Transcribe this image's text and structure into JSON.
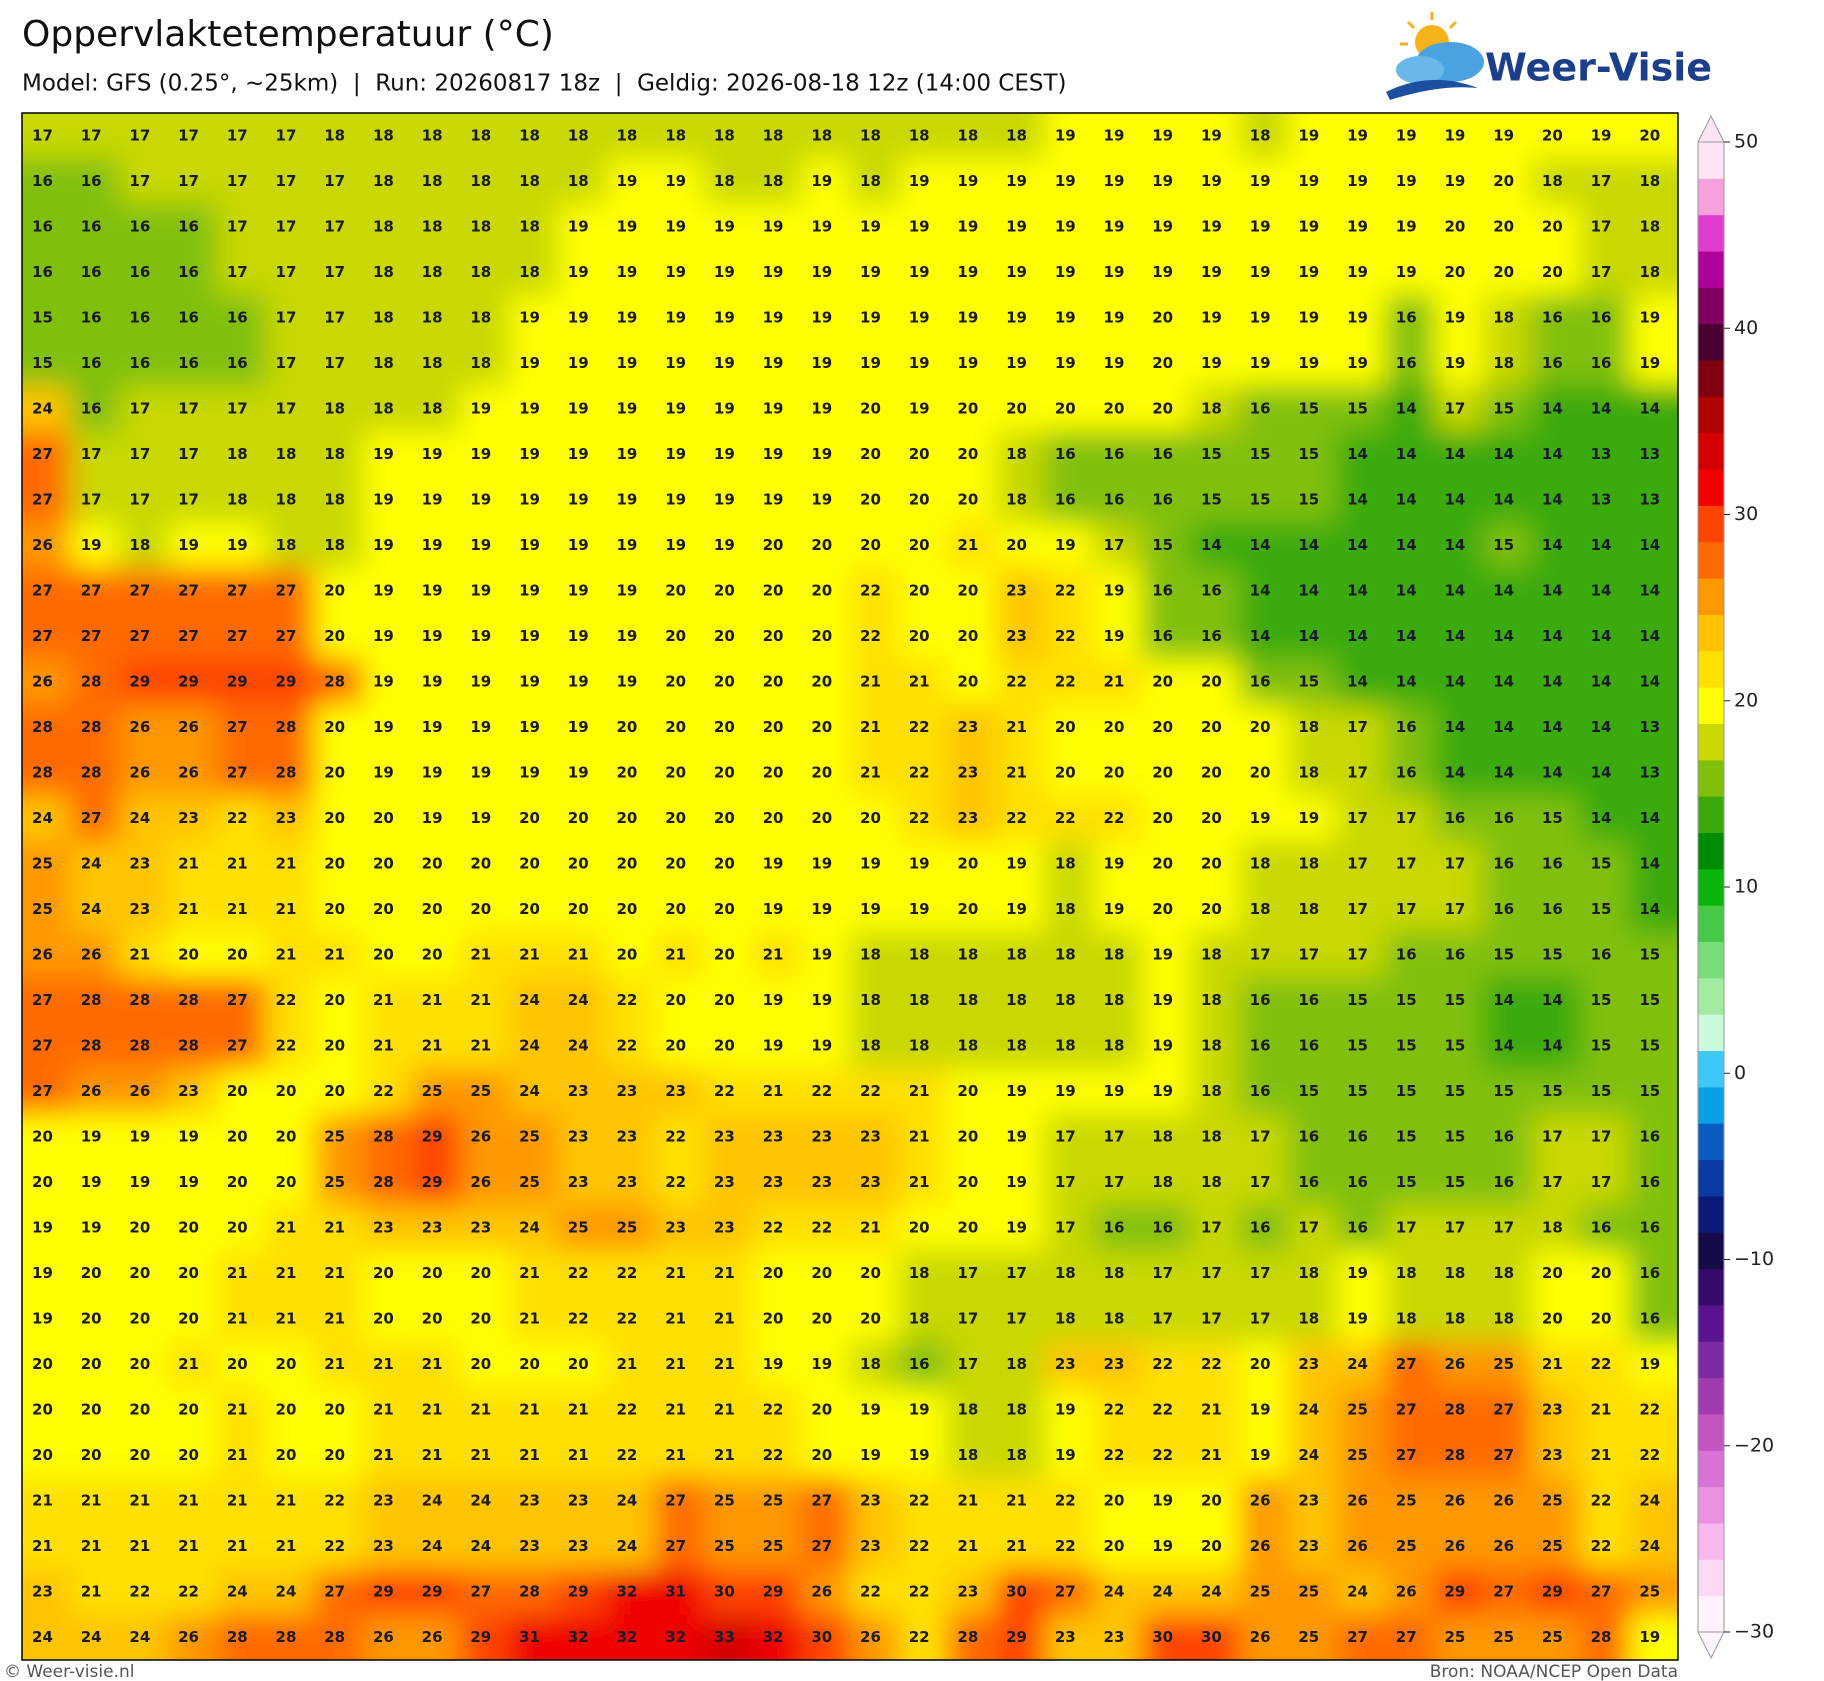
{
  "header": {
    "title": "Oppervlaktetemperatuur (°C)",
    "subtitle": "Model: GFS (0.25°, ~25km)  |  Run: 20260817 18z  |  Geldig: 2026-08-18 12z (14:00 CEST)",
    "logo_text": "Weer-Visie"
  },
  "map": {
    "rows": [
      [
        17,
        17,
        17,
        17,
        17,
        17,
        18,
        18,
        18,
        18,
        18,
        18,
        18,
        18,
        18,
        18,
        18,
        18,
        18,
        18,
        18,
        19,
        19,
        19,
        19,
        18,
        19,
        19,
        19,
        19,
        19,
        20,
        19,
        20
      ],
      [
        16,
        16,
        17,
        17,
        17,
        17,
        17,
        18,
        18,
        18,
        18,
        18,
        19,
        19,
        18,
        18,
        19,
        18,
        19,
        19,
        19,
        19,
        19,
        19,
        19,
        19,
        19,
        19,
        19,
        19,
        20,
        18,
        17,
        18
      ],
      [
        16,
        16,
        16,
        16,
        17,
        17,
        17,
        18,
        18,
        18,
        18,
        19,
        19,
        19,
        19,
        19,
        19,
        19,
        19,
        19,
        19,
        19,
        19,
        19,
        19,
        19,
        19,
        19,
        19,
        20,
        20,
        20,
        17,
        18
      ],
      [
        16,
        16,
        16,
        16,
        17,
        17,
        17,
        18,
        18,
        18,
        18,
        19,
        19,
        19,
        19,
        19,
        19,
        19,
        19,
        19,
        19,
        19,
        19,
        19,
        19,
        19,
        19,
        19,
        19,
        20,
        20,
        20,
        17,
        18
      ],
      [
        15,
        16,
        16,
        16,
        16,
        17,
        17,
        18,
        18,
        18,
        19,
        19,
        19,
        19,
        19,
        19,
        19,
        19,
        19,
        19,
        19,
        19,
        19,
        20,
        19,
        19,
        19,
        19,
        16,
        19,
        18,
        16,
        16,
        19
      ],
      [
        15,
        16,
        16,
        16,
        16,
        17,
        17,
        18,
        18,
        18,
        19,
        19,
        19,
        19,
        19,
        19,
        19,
        19,
        19,
        19,
        19,
        19,
        19,
        20,
        19,
        19,
        19,
        19,
        16,
        19,
        18,
        16,
        16,
        19
      ],
      [
        24,
        16,
        17,
        17,
        17,
        17,
        18,
        18,
        18,
        19,
        19,
        19,
        19,
        19,
        19,
        19,
        19,
        20,
        19,
        20,
        20,
        20,
        20,
        20,
        18,
        16,
        15,
        15,
        14,
        17,
        15,
        14,
        14,
        14
      ],
      [
        27,
        17,
        17,
        17,
        18,
        18,
        18,
        19,
        19,
        19,
        19,
        19,
        19,
        19,
        19,
        19,
        19,
        20,
        20,
        20,
        18,
        16,
        16,
        16,
        15,
        15,
        15,
        14,
        14,
        14,
        14,
        14,
        13,
        13
      ],
      [
        27,
        17,
        17,
        17,
        18,
        18,
        18,
        19,
        19,
        19,
        19,
        19,
        19,
        19,
        19,
        19,
        19,
        20,
        20,
        20,
        18,
        16,
        16,
        16,
        15,
        15,
        15,
        14,
        14,
        14,
        14,
        14,
        13,
        13
      ],
      [
        26,
        19,
        18,
        19,
        19,
        18,
        18,
        19,
        19,
        19,
        19,
        19,
        19,
        19,
        19,
        20,
        20,
        20,
        20,
        21,
        20,
        19,
        17,
        15,
        14,
        14,
        14,
        14,
        14,
        14,
        15,
        14,
        14,
        14
      ],
      [
        27,
        27,
        27,
        27,
        27,
        27,
        20,
        19,
        19,
        19,
        19,
        19,
        19,
        20,
        20,
        20,
        20,
        22,
        20,
        20,
        23,
        22,
        19,
        16,
        16,
        14,
        14,
        14,
        14,
        14,
        14,
        14,
        14,
        14
      ],
      [
        27,
        27,
        27,
        27,
        27,
        27,
        20,
        19,
        19,
        19,
        19,
        19,
        19,
        20,
        20,
        20,
        20,
        22,
        20,
        20,
        23,
        22,
        19,
        16,
        16,
        14,
        14,
        14,
        14,
        14,
        14,
        14,
        14,
        14
      ],
      [
        26,
        28,
        29,
        29,
        29,
        29,
        28,
        19,
        19,
        19,
        19,
        19,
        19,
        20,
        20,
        20,
        20,
        21,
        21,
        20,
        22,
        22,
        21,
        20,
        20,
        16,
        15,
        14,
        14,
        14,
        14,
        14,
        14,
        14
      ],
      [
        28,
        28,
        26,
        26,
        27,
        28,
        20,
        19,
        19,
        19,
        19,
        19,
        20,
        20,
        20,
        20,
        20,
        21,
        22,
        23,
        21,
        20,
        20,
        20,
        20,
        20,
        18,
        17,
        16,
        14,
        14,
        14,
        14,
        13
      ],
      [
        28,
        28,
        26,
        26,
        27,
        28,
        20,
        19,
        19,
        19,
        19,
        19,
        20,
        20,
        20,
        20,
        20,
        21,
        22,
        23,
        21,
        20,
        20,
        20,
        20,
        20,
        18,
        17,
        16,
        14,
        14,
        14,
        14,
        13
      ],
      [
        24,
        27,
        24,
        23,
        22,
        23,
        20,
        20,
        19,
        19,
        20,
        20,
        20,
        20,
        20,
        20,
        20,
        20,
        22,
        23,
        22,
        22,
        22,
        20,
        20,
        19,
        19,
        17,
        17,
        16,
        16,
        15,
        14,
        14
      ],
      [
        25,
        24,
        23,
        21,
        21,
        21,
        20,
        20,
        20,
        20,
        20,
        20,
        20,
        20,
        20,
        19,
        19,
        19,
        19,
        20,
        19,
        18,
        19,
        20,
        20,
        18,
        18,
        17,
        17,
        17,
        16,
        16,
        15,
        14
      ],
      [
        25,
        24,
        23,
        21,
        21,
        21,
        20,
        20,
        20,
        20,
        20,
        20,
        20,
        20,
        20,
        19,
        19,
        19,
        19,
        20,
        19,
        18,
        19,
        20,
        20,
        18,
        18,
        17,
        17,
        17,
        16,
        16,
        15,
        14
      ],
      [
        26,
        26,
        21,
        20,
        20,
        21,
        21,
        20,
        20,
        21,
        21,
        21,
        20,
        21,
        20,
        21,
        19,
        18,
        18,
        18,
        18,
        18,
        18,
        19,
        18,
        17,
        17,
        17,
        16,
        16,
        15,
        15,
        16,
        15
      ],
      [
        27,
        28,
        28,
        28,
        27,
        22,
        20,
        21,
        21,
        21,
        24,
        24,
        22,
        20,
        20,
        19,
        19,
        18,
        18,
        18,
        18,
        18,
        18,
        19,
        18,
        16,
        16,
        15,
        15,
        15,
        14,
        14,
        15,
        15
      ],
      [
        27,
        28,
        28,
        28,
        27,
        22,
        20,
        21,
        21,
        21,
        24,
        24,
        22,
        20,
        20,
        19,
        19,
        18,
        18,
        18,
        18,
        18,
        18,
        19,
        18,
        16,
        16,
        15,
        15,
        15,
        14,
        14,
        15,
        15
      ],
      [
        27,
        26,
        26,
        23,
        20,
        20,
        20,
        22,
        25,
        25,
        24,
        23,
        23,
        23,
        22,
        21,
        22,
        22,
        21,
        20,
        19,
        19,
        19,
        19,
        18,
        16,
        15,
        15,
        15,
        15,
        15,
        15,
        15,
        15
      ],
      [
        20,
        19,
        19,
        19,
        20,
        20,
        25,
        28,
        29,
        26,
        25,
        23,
        23,
        22,
        23,
        23,
        23,
        23,
        21,
        20,
        19,
        17,
        17,
        18,
        18,
        17,
        16,
        16,
        15,
        15,
        16,
        17,
        17,
        16
      ],
      [
        20,
        19,
        19,
        19,
        20,
        20,
        25,
        28,
        29,
        26,
        25,
        23,
        23,
        22,
        23,
        23,
        23,
        23,
        21,
        20,
        19,
        17,
        17,
        18,
        18,
        17,
        16,
        16,
        15,
        15,
        16,
        17,
        17,
        16
      ],
      [
        19,
        19,
        20,
        20,
        20,
        21,
        21,
        23,
        23,
        23,
        24,
        25,
        25,
        23,
        23,
        22,
        22,
        21,
        20,
        20,
        19,
        17,
        16,
        16,
        17,
        16,
        17,
        16,
        17,
        17,
        17,
        18,
        16,
        16
      ],
      [
        19,
        20,
        20,
        20,
        21,
        21,
        21,
        20,
        20,
        20,
        21,
        22,
        22,
        21,
        21,
        20,
        20,
        20,
        18,
        17,
        17,
        18,
        18,
        17,
        17,
        17,
        18,
        19,
        18,
        18,
        18,
        20,
        20,
        16
      ],
      [
        19,
        20,
        20,
        20,
        21,
        21,
        21,
        20,
        20,
        20,
        21,
        22,
        22,
        21,
        21,
        20,
        20,
        20,
        18,
        17,
        17,
        18,
        18,
        17,
        17,
        17,
        18,
        19,
        18,
        18,
        18,
        20,
        20,
        16
      ],
      [
        20,
        20,
        20,
        21,
        20,
        20,
        21,
        21,
        21,
        20,
        20,
        20,
        21,
        21,
        21,
        19,
        19,
        18,
        16,
        17,
        18,
        23,
        23,
        22,
        22,
        20,
        23,
        24,
        27,
        26,
        25,
        21,
        22,
        19
      ],
      [
        20,
        20,
        20,
        20,
        21,
        20,
        20,
        21,
        21,
        21,
        21,
        21,
        22,
        21,
        21,
        22,
        20,
        19,
        19,
        18,
        18,
        19,
        22,
        22,
        21,
        19,
        24,
        25,
        27,
        28,
        27,
        23,
        21,
        22
      ],
      [
        20,
        20,
        20,
        20,
        21,
        20,
        20,
        21,
        21,
        21,
        21,
        21,
        22,
        21,
        21,
        22,
        20,
        19,
        19,
        18,
        18,
        19,
        22,
        22,
        21,
        19,
        24,
        25,
        27,
        28,
        27,
        23,
        21,
        22
      ],
      [
        21,
        21,
        21,
        21,
        21,
        21,
        22,
        23,
        24,
        24,
        23,
        23,
        24,
        27,
        25,
        25,
        27,
        23,
        22,
        21,
        21,
        22,
        20,
        19,
        20,
        26,
        23,
        26,
        25,
        26,
        26,
        25,
        22,
        24
      ],
      [
        21,
        21,
        21,
        21,
        21,
        21,
        22,
        23,
        24,
        24,
        23,
        23,
        24,
        27,
        25,
        25,
        27,
        23,
        22,
        21,
        21,
        22,
        20,
        19,
        20,
        26,
        23,
        26,
        25,
        26,
        26,
        25,
        22,
        24
      ],
      [
        23,
        21,
        22,
        22,
        24,
        24,
        27,
        29,
        29,
        27,
        28,
        29,
        32,
        31,
        30,
        29,
        26,
        22,
        22,
        23,
        30,
        27,
        24,
        24,
        24,
        25,
        25,
        24,
        26,
        29,
        27,
        29,
        27,
        25
      ],
      [
        24,
        24,
        24,
        26,
        28,
        28,
        28,
        26,
        26,
        29,
        31,
        32,
        32,
        32,
        33,
        32,
        30,
        26,
        22,
        28,
        29,
        23,
        23,
        30,
        30,
        26,
        25,
        27,
        27,
        25,
        25,
        25,
        28,
        19
      ]
    ]
  },
  "colorbar": {
    "clim": [
      -30,
      50
    ],
    "ticks": [
      50,
      40,
      30,
      20,
      10,
      0,
      {
        "value": -10,
        "label": "−10"
      },
      {
        "value": -20,
        "label": "−20"
      },
      {
        "value": -30,
        "label": "−30"
      }
    ],
    "colors": [
      "#fff4fd",
      "#fdd8f6",
      "#f8b8ef",
      "#ea92e0",
      "#d872d6",
      "#c054c0",
      "#a03cb0",
      "#7e2aa0",
      "#5a128e",
      "#360a6a",
      "#160a48",
      "#0a1a78",
      "#0a3aa0",
      "#0a5cc0",
      "#0aa0e8",
      "#3ec8f8",
      "#ccf8dc",
      "#a2eca2",
      "#78dc78",
      "#48c848",
      "#0ab40a",
      "#008c00",
      "#3aaa0a",
      "#80c00a",
      "#c8d800",
      "#ffff00",
      "#ffe000",
      "#ffc400",
      "#ff9800",
      "#ff6a00",
      "#ff4400",
      "#f00000",
      "#d40000",
      "#b00000",
      "#800010",
      "#4a0030",
      "#800060",
      "#b0009a",
      "#e03cd0",
      "#f8a0de",
      "#fce4f5"
    ]
  },
  "footer": {
    "credit": "© Weer-visie.nl",
    "source": "Bron: NOAA/NCEP Open Data"
  }
}
